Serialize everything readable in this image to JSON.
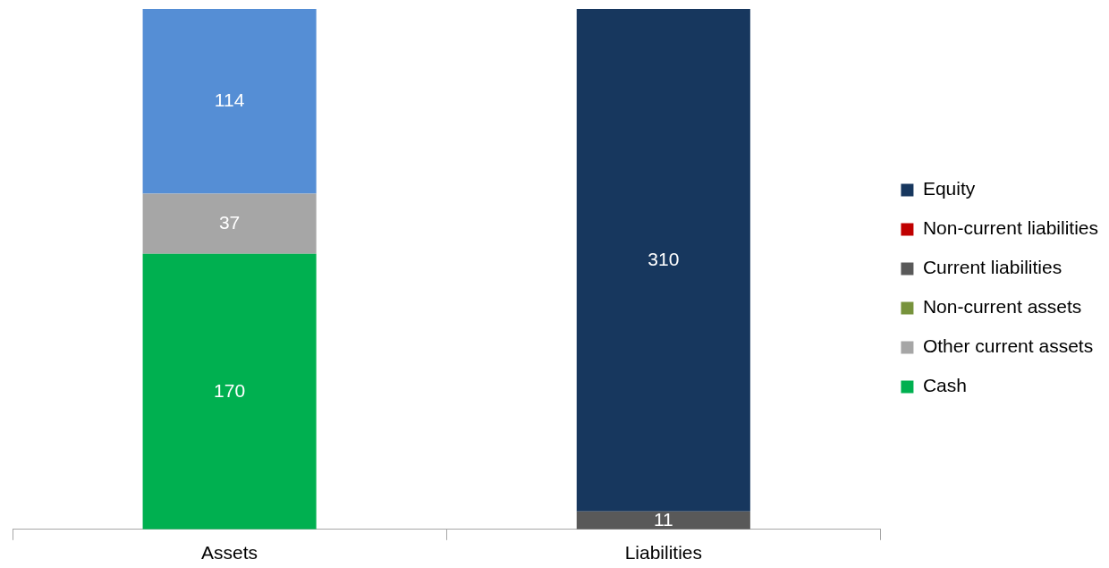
{
  "chart_data": {
    "type": "bar",
    "stacked": true,
    "categories": [
      "Assets",
      "Liabilities"
    ],
    "series": [
      {
        "name": "Cash",
        "color": "#00b050",
        "values": [
          170,
          null
        ]
      },
      {
        "name": "Other current assets",
        "color": "#a6a6a6",
        "values": [
          37,
          null
        ]
      },
      {
        "color": "#558ed5",
        "values": [
          114,
          null
        ]
      },
      {
        "name": "Non-current assets",
        "color": "#77933c",
        "values": [
          null,
          null
        ]
      },
      {
        "name": "Current liabilities",
        "color": "#595959",
        "values": [
          null,
          11
        ]
      },
      {
        "name": "Non-current liabilities",
        "color": "#c00000",
        "values": [
          null,
          null
        ]
      },
      {
        "name": "Equity",
        "color": "#17375e",
        "values": [
          null,
          310
        ]
      }
    ],
    "data_labels": true,
    "legend": "right",
    "grid": false
  }
}
